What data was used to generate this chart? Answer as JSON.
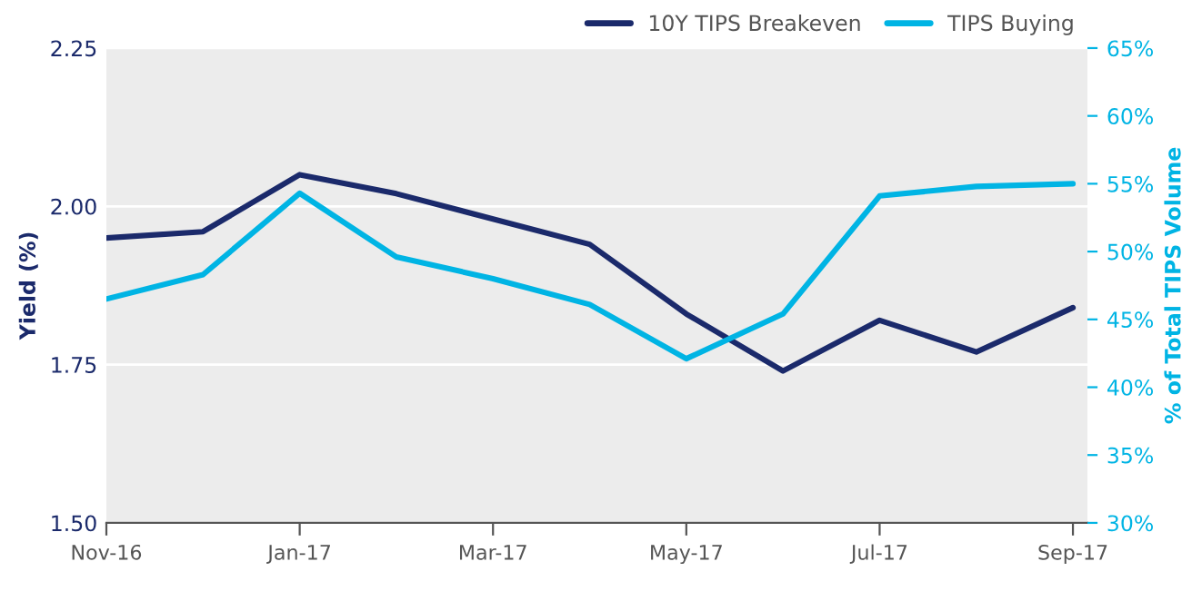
{
  "chart_data": {
    "type": "line",
    "categories": [
      "Nov-16",
      null,
      "Jan-17",
      null,
      "Mar-17",
      null,
      "May-17",
      null,
      "Jul-17",
      null,
      "Sep-17"
    ],
    "series": [
      {
        "name": "10Y TIPS Breakeven",
        "color": "#1b2a6b",
        "values": [
          1.95,
          1.96,
          2.05,
          2.02,
          1.98,
          1.94,
          1.83,
          1.74,
          1.82,
          1.77,
          1.84
        ]
      },
      {
        "name": "TIPS Buying",
        "color": "#00b4e4",
        "axis": "y2",
        "values": [
          46.5,
          48.3,
          54.3,
          49.6,
          48.0,
          46.1,
          42.1,
          45.4,
          54.1,
          54.8,
          55.0
        ]
      }
    ],
    "ylabel": "Yield (%)",
    "y2label": "% of Total TIPS Volume",
    "ylim": [
      1.5,
      2.25
    ],
    "yticks": [
      {
        "value": 1.5,
        "label": "1.50"
      },
      {
        "value": 1.75,
        "label": "1.75"
      },
      {
        "value": 2.0,
        "label": "2.00"
      },
      {
        "value": 2.25,
        "label": "2.25"
      }
    ],
    "y2lim": [
      30,
      65
    ],
    "y2ticks": [
      {
        "value": 30,
        "label": "30%"
      },
      {
        "value": 35,
        "label": "35%"
      },
      {
        "value": 40,
        "label": "40%"
      },
      {
        "value": 45,
        "label": "45%"
      },
      {
        "value": 50,
        "label": "50%"
      },
      {
        "value": 55,
        "label": "55%"
      },
      {
        "value": 60,
        "label": "60%"
      },
      {
        "value": 65,
        "label": "65%"
      }
    ],
    "grid": "y",
    "legend": "top right",
    "marker": "none",
    "line_style": "solid"
  }
}
